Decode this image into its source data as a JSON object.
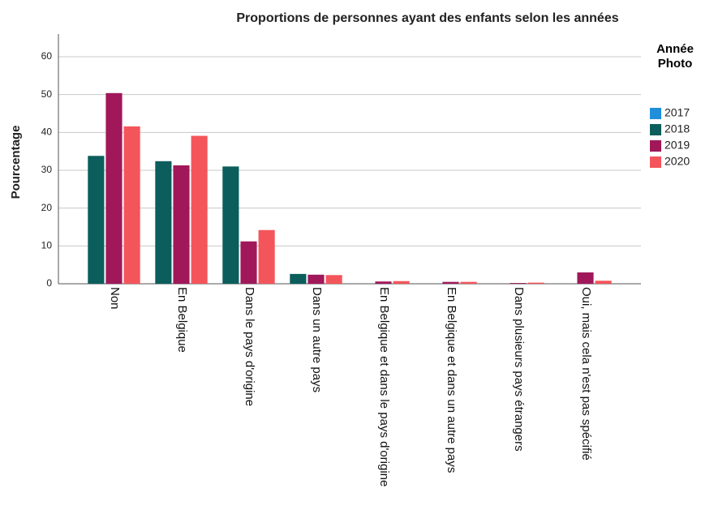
{
  "chart_data": {
    "type": "bar",
    "title": "Proportions de personnes ayant des enfants selon les années",
    "y_label": "Pourcentage",
    "legend_title": "Année Photo",
    "categories": [
      "Non",
      "En Belgique",
      "Dans le pays d'origine",
      "Dans un autre pays",
      "En Belgique et dans le pays d'origine",
      "En Belgique et dans un autre pays",
      "Dans plusieurs pays étrangers",
      "Oui, mais cela n'est pas spécifié"
    ],
    "series": [
      {
        "name": "2017",
        "color": "#1f8fdc",
        "values": [
          null,
          null,
          null,
          null,
          null,
          null,
          null,
          null
        ]
      },
      {
        "name": "2018",
        "color": "#0b5e5c",
        "values": [
          33.8,
          32.4,
          31.0,
          2.6,
          0,
          0,
          0,
          0
        ]
      },
      {
        "name": "2019",
        "color": "#a0185a",
        "values": [
          50.4,
          31.3,
          11.2,
          2.4,
          0.6,
          0.5,
          0.2,
          3.0
        ]
      },
      {
        "name": "2020",
        "color": "#f4555a",
        "values": [
          41.6,
          39.1,
          14.2,
          2.3,
          0.7,
          0.5,
          0.3,
          0.8
        ]
      }
    ],
    "ylim": [
      0,
      66
    ],
    "yticks": [
      0,
      10,
      20,
      30,
      40,
      50,
      60
    ],
    "grid": true,
    "legend": "right"
  }
}
